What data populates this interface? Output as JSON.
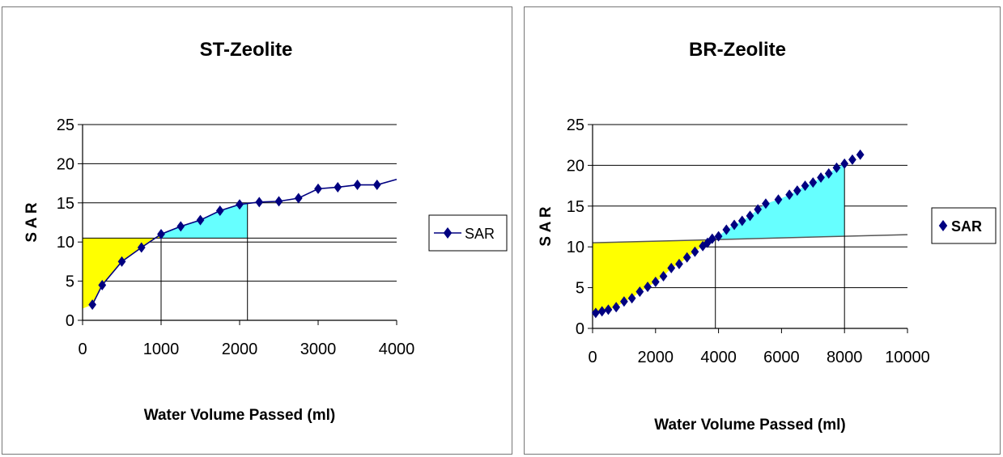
{
  "chart_data": [
    {
      "type": "line",
      "title": "ST-Zeolite",
      "xlabel": "Water Volume Passed (ml)",
      "ylabel": "S A R",
      "xlim": [
        0,
        4000
      ],
      "ylim": [
        0,
        25
      ],
      "xticks": [
        "0",
        "1000",
        "2000",
        "3000",
        "4000"
      ],
      "yticks": [
        "0",
        "5",
        "10",
        "15",
        "20",
        "25"
      ],
      "grid": "horizontal",
      "legend_position": "right",
      "series": [
        {
          "name": "SAR",
          "color": "#000080",
          "marker": "diamond",
          "x": [
            125,
            250,
            500,
            750,
            1000,
            1250,
            1500,
            1750,
            2000,
            2250,
            2500,
            2750,
            3000,
            3250,
            3500,
            3750
          ],
          "y": [
            2,
            4.5,
            7.5,
            9.3,
            11,
            12,
            12.8,
            14,
            14.8,
            15.1,
            15.2,
            15.6,
            16.8,
            17,
            17.3,
            17.3
          ]
        }
      ],
      "curve_end": {
        "x": 4000,
        "y": 18
      },
      "reference_lines": {
        "horizontal_y": 10.5,
        "vertical_x": [
          1000,
          2100
        ]
      },
      "shaded_regions": [
        {
          "color": "#ffff00"
        },
        {
          "color": "#66ffff"
        }
      ]
    },
    {
      "type": "scatter",
      "title": "BR-Zeolite",
      "xlabel": "Water Volume Passed (ml)",
      "ylabel": "S A R",
      "xlim": [
        0,
        10000
      ],
      "ylim": [
        0,
        25
      ],
      "xticks": [
        "0",
        "2000",
        "4000",
        "6000",
        "8000",
        "10000"
      ],
      "yticks": [
        "0",
        "5",
        "10",
        "15",
        "20",
        "25"
      ],
      "grid": "horizontal",
      "legend_position": "right",
      "series": [
        {
          "name": "SAR",
          "color": "#000080",
          "marker": "diamond",
          "x": [
            100,
            300,
            500,
            750,
            1000,
            1250,
            1500,
            1750,
            2000,
            2250,
            2500,
            2750,
            3000,
            3250,
            3500,
            3650,
            3800,
            4000,
            4250,
            4500,
            4750,
            5000,
            5250,
            5500,
            5900,
            6250,
            6500,
            6750,
            7000,
            7250,
            7500,
            7750,
            8000,
            8250,
            8500
          ],
          "y": [
            1.9,
            2.1,
            2.3,
            2.6,
            3.3,
            3.7,
            4.5,
            5.1,
            5.7,
            6.4,
            7.4,
            7.9,
            8.7,
            9.4,
            10.1,
            10.5,
            11,
            11.3,
            12.1,
            12.7,
            13.2,
            13.8,
            14.6,
            15.3,
            15.8,
            16.4,
            16.9,
            17.5,
            17.9,
            18.5,
            19,
            19.7,
            20.2,
            20.7,
            21.3
          ]
        }
      ],
      "reference_lines": {
        "sloped_from": [
          0,
          10.5
        ],
        "sloped_to": [
          10000,
          11.5
        ],
        "vertical_x": [
          3900,
          8000
        ]
      },
      "shaded_regions": [
        {
          "color": "#ffff00"
        },
        {
          "color": "#66ffff"
        }
      ]
    }
  ]
}
